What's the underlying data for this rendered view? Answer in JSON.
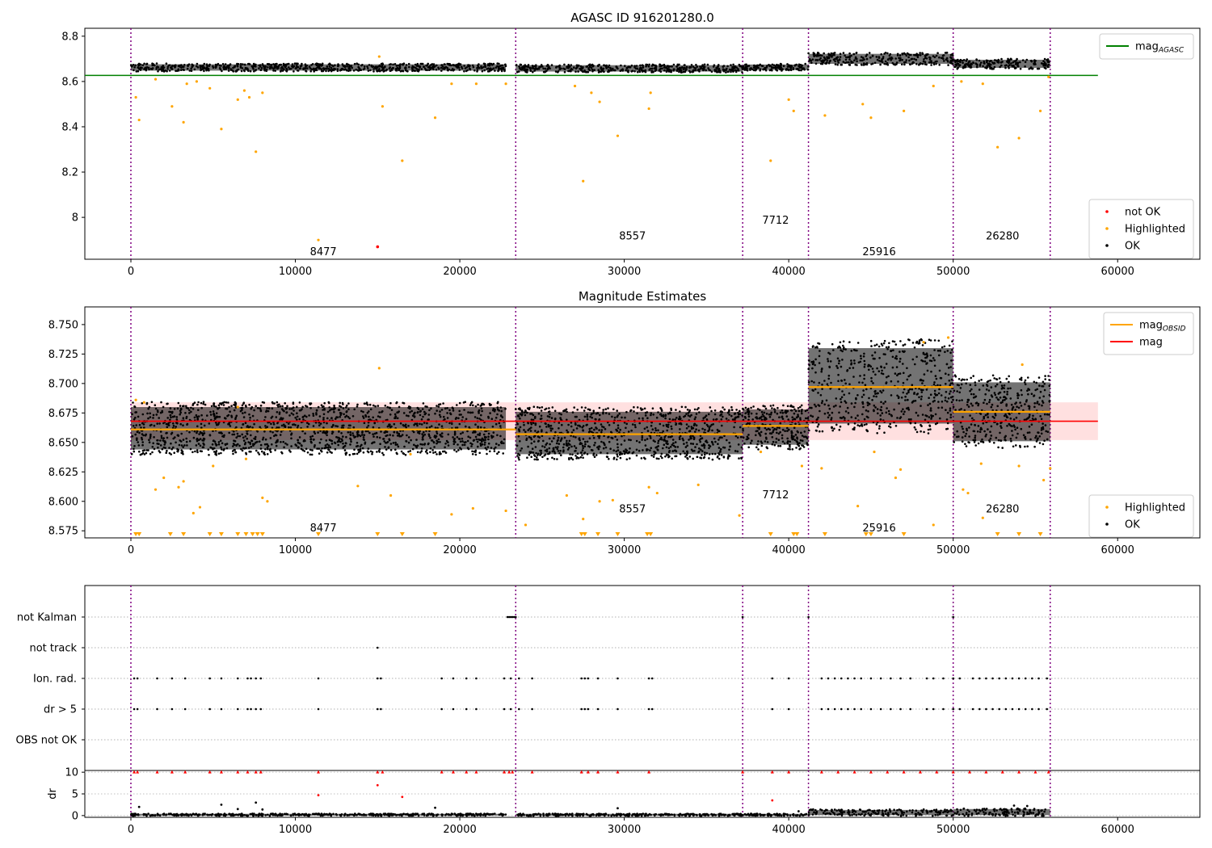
{
  "chart_data": [
    {
      "type": "scatter",
      "title": "AGASC ID 916201280.0",
      "xlim": [
        -2800,
        65000
      ],
      "ylim": [
        7.815,
        8.835
      ],
      "xticks": [
        0,
        10000,
        20000,
        30000,
        40000,
        50000,
        60000
      ],
      "yticks": [
        8.0,
        8.2,
        8.4,
        8.6,
        8.8
      ],
      "obsid_boundaries": [
        0,
        23400,
        37200,
        41200,
        50000,
        55900
      ],
      "obsids": [
        {
          "label": "8477",
          "x": 11700,
          "y": 7.85
        },
        {
          "label": "8557",
          "x": 30500,
          "y": 7.92
        },
        {
          "label": "7712",
          "x": 39200,
          "y": 7.99
        },
        {
          "label": "25916",
          "x": 45500,
          "y": 7.85
        },
        {
          "label": "26280",
          "x": 53000,
          "y": 7.92
        }
      ],
      "ok_bands": [
        {
          "x0": 0,
          "x1": 22800,
          "center": 8.662,
          "halfwidth": 0.014
        },
        {
          "x0": 23400,
          "x1": 37200,
          "center": 8.658,
          "halfwidth": 0.014
        },
        {
          "x0": 37200,
          "x1": 41200,
          "center": 8.663,
          "halfwidth": 0.012
        },
        {
          "x0": 41200,
          "x1": 50000,
          "center": 8.7,
          "halfwidth": 0.022
        },
        {
          "x0": 50000,
          "x1": 55900,
          "center": 8.678,
          "halfwidth": 0.018
        }
      ],
      "highlighted": [
        [
          300,
          8.53
        ],
        [
          500,
          8.43
        ],
        [
          1500,
          8.61
        ],
        [
          2500,
          8.49
        ],
        [
          3200,
          8.42
        ],
        [
          3400,
          8.59
        ],
        [
          4000,
          8.6
        ],
        [
          4800,
          8.57
        ],
        [
          5500,
          8.39
        ],
        [
          6500,
          8.52
        ],
        [
          6900,
          8.56
        ],
        [
          7200,
          8.53
        ],
        [
          7600,
          8.29
        ],
        [
          8000,
          8.55
        ],
        [
          15100,
          8.71
        ],
        [
          15300,
          8.49
        ],
        [
          16500,
          8.25
        ],
        [
          18500,
          8.44
        ],
        [
          19500,
          8.59
        ],
        [
          21000,
          8.59
        ],
        [
          22800,
          8.59
        ],
        [
          27000,
          8.58
        ],
        [
          27500,
          8.16
        ],
        [
          28000,
          8.55
        ],
        [
          28500,
          8.51
        ],
        [
          29600,
          8.36
        ],
        [
          31500,
          8.48
        ],
        [
          31600,
          8.55
        ],
        [
          38900,
          8.25
        ],
        [
          40000,
          8.52
        ],
        [
          40300,
          8.47
        ],
        [
          42200,
          8.45
        ],
        [
          44500,
          8.5
        ],
        [
          45000,
          8.44
        ],
        [
          47000,
          8.47
        ],
        [
          48800,
          8.58
        ],
        [
          50500,
          8.6
        ],
        [
          51800,
          8.59
        ],
        [
          52700,
          8.31
        ],
        [
          54000,
          8.35
        ],
        [
          55300,
          8.47
        ],
        [
          55800,
          8.62
        ],
        [
          11400,
          7.9
        ]
      ],
      "not_ok": [
        [
          15000,
          7.87
        ]
      ],
      "mag_agasc": 8.627,
      "mag_agasc_xmax": 58800,
      "legend_lines": [
        {
          "label": "mag",
          "sub": "AGASC",
          "color": "#008000"
        }
      ],
      "legend_points": [
        {
          "label": "not OK",
          "color": "#ff0000"
        },
        {
          "label": "Highlighted",
          "color": "#ffa500"
        },
        {
          "label": "OK",
          "color": "#000000"
        }
      ]
    },
    {
      "type": "scatter",
      "title": "Magnitude Estimates",
      "xlim": [
        -2800,
        65000
      ],
      "ylim": [
        8.569,
        8.765
      ],
      "xticks": [
        0,
        10000,
        20000,
        30000,
        40000,
        50000,
        60000
      ],
      "yticks": [
        8.575,
        8.6,
        8.625,
        8.65,
        8.675,
        8.7,
        8.725,
        8.75
      ],
      "ytick_labels": [
        "8.575",
        "8.600",
        "8.625",
        "8.650",
        "8.675",
        "8.700",
        "8.725",
        "8.750"
      ],
      "obsid_boundaries": [
        0,
        23400,
        37200,
        41200,
        50000,
        55900
      ],
      "obsids": [
        {
          "label": "8477",
          "x": 11700,
          "y": 8.578
        },
        {
          "label": "8557",
          "x": 30500,
          "y": 8.594
        },
        {
          "label": "7712",
          "x": 39200,
          "y": 8.606
        },
        {
          "label": "25916",
          "x": 45500,
          "y": 8.578
        },
        {
          "label": "26280",
          "x": 53000,
          "y": 8.594
        }
      ],
      "ok_bands": [
        {
          "x0": 0,
          "x1": 22800,
          "center": 8.662,
          "halfwidth": 0.018
        },
        {
          "x0": 23400,
          "x1": 37200,
          "center": 8.658,
          "halfwidth": 0.018
        },
        {
          "x0": 37200,
          "x1": 41200,
          "center": 8.663,
          "halfwidth": 0.015
        },
        {
          "x0": 41200,
          "x1": 50000,
          "center": 8.698,
          "halfwidth": 0.032
        },
        {
          "x0": 50000,
          "x1": 55900,
          "center": 8.676,
          "halfwidth": 0.025
        }
      ],
      "highlighted": [
        [
          300,
          8.686
        ],
        [
          800,
          8.684
        ],
        [
          1500,
          8.61
        ],
        [
          2000,
          8.62
        ],
        [
          2900,
          8.612
        ],
        [
          3200,
          8.617
        ],
        [
          3800,
          8.59
        ],
        [
          4200,
          8.595
        ],
        [
          5000,
          8.63
        ],
        [
          6500,
          8.68
        ],
        [
          7000,
          8.636
        ],
        [
          8000,
          8.603
        ],
        [
          8300,
          8.6
        ],
        [
          13800,
          8.613
        ],
        [
          15100,
          8.713
        ],
        [
          15800,
          8.605
        ],
        [
          17000,
          8.64
        ],
        [
          19500,
          8.589
        ],
        [
          20800,
          8.594
        ],
        [
          22800,
          8.592
        ],
        [
          24000,
          8.58
        ],
        [
          26500,
          8.605
        ],
        [
          27500,
          8.585
        ],
        [
          28500,
          8.6
        ],
        [
          29300,
          8.601
        ],
        [
          31500,
          8.612
        ],
        [
          32000,
          8.607
        ],
        [
          34500,
          8.614
        ],
        [
          37000,
          8.588
        ],
        [
          38300,
          8.642
        ],
        [
          40800,
          8.63
        ],
        [
          42000,
          8.628
        ],
        [
          44200,
          8.596
        ],
        [
          45200,
          8.642
        ],
        [
          46500,
          8.62
        ],
        [
          46800,
          8.627
        ],
        [
          48800,
          8.58
        ],
        [
          50600,
          8.61
        ],
        [
          50900,
          8.607
        ],
        [
          51800,
          8.586
        ],
        [
          51700,
          8.632
        ],
        [
          54000,
          8.63
        ],
        [
          55500,
          8.618
        ],
        [
          55900,
          8.628
        ],
        [
          54200,
          8.716
        ],
        [
          49700,
          8.739
        ],
        [
          48200,
          8.735
        ]
      ],
      "lower_markers": [
        300,
        500,
        2400,
        3200,
        4800,
        5500,
        6500,
        7000,
        7400,
        7700,
        8000,
        11400,
        15000,
        16500,
        18500,
        27400,
        27600,
        28400,
        29600,
        31400,
        31600,
        38900,
        40300,
        40500,
        42200,
        44700,
        45000,
        47000,
        52700,
        54000,
        55300
      ],
      "mag_obsid": [
        {
          "x0": 0,
          "x1": 23400,
          "value": 8.661
        },
        {
          "x0": 23400,
          "x1": 37200,
          "value": 8.657
        },
        {
          "x0": 37200,
          "x1": 41200,
          "value": 8.664
        },
        {
          "x0": 41200,
          "x1": 50000,
          "value": 8.697
        },
        {
          "x0": 50000,
          "x1": 55900,
          "value": 8.676
        }
      ],
      "mag": 8.668,
      "mag_std": 0.016,
      "mag_xmax": 58800,
      "legend_lines": [
        {
          "label": "mag",
          "sub": "OBSID",
          "color": "#ffa500"
        },
        {
          "label": "mag",
          "sub": "",
          "color": "#ff0000"
        }
      ],
      "legend_points": [
        {
          "label": "Highlighted",
          "color": "#ffa500"
        },
        {
          "label": "OK",
          "color": "#000000"
        }
      ]
    },
    {
      "type": "scatter",
      "xlim": [
        -2800,
        65000
      ],
      "xticks": [
        0,
        10000,
        20000,
        30000,
        40000,
        50000,
        60000
      ],
      "obsid_boundaries": [
        0,
        23400,
        37200,
        41200,
        50000,
        55900
      ],
      "flag_categories": [
        "not Kalman",
        "not track",
        "Ion. rad.",
        "dr > 5",
        "OBS not OK"
      ],
      "flags": {
        "not Kalman": [
          22900,
          23000,
          23100,
          23200,
          23300,
          23400,
          37200,
          41200,
          50000
        ],
        "not track": [
          15000
        ],
        "Ion. rad.": [
          200,
          400,
          1600,
          2500,
          3300,
          4800,
          5500,
          6500,
          7100,
          7300,
          7600,
          7900,
          11400,
          15000,
          15200,
          18900,
          19600,
          20400,
          21000,
          22700,
          23100,
          23600,
          24400,
          27400,
          27600,
          27800,
          28400,
          29600,
          31500,
          31700,
          39000,
          40000,
          42000,
          42400,
          42800,
          43200,
          43600,
          44000,
          44400,
          45000,
          45600,
          46200,
          46800,
          47400,
          48400,
          48800,
          49400,
          50000,
          50400,
          51200,
          51600,
          52000,
          52400,
          52800,
          53200,
          53600,
          54000,
          54400,
          54800,
          55200,
          55700
        ],
        "dr > 5": [
          200,
          400,
          1600,
          2500,
          3300,
          4800,
          5500,
          6500,
          7100,
          7300,
          7600,
          7900,
          11400,
          15000,
          15200,
          18900,
          19600,
          20400,
          21000,
          22700,
          23100,
          23600,
          24400,
          27400,
          27600,
          27800,
          28400,
          29600,
          31500,
          31700,
          39000,
          40000,
          42000,
          42400,
          42800,
          43200,
          43600,
          44000,
          44400,
          45000,
          45600,
          46200,
          46800,
          47400,
          48400,
          48800,
          49400,
          50000,
          50400,
          51200,
          51600,
          52000,
          52400,
          52800,
          53200,
          53600,
          54000,
          54400,
          54800,
          55200,
          55700
        ],
        "OBS not OK": []
      }
    },
    {
      "type": "scatter",
      "xlim": [
        -2800,
        65000
      ],
      "ylim": [
        -0.4,
        10.4
      ],
      "ylabel": "dr",
      "xticks": [
        0,
        10000,
        20000,
        30000,
        40000,
        50000,
        60000
      ],
      "yticks": [
        0,
        5,
        10
      ],
      "obsid_boundaries": [
        0,
        23400,
        37200,
        41200,
        50000,
        55900
      ],
      "dr_red": [
        [
          200,
          10
        ],
        [
          400,
          10
        ],
        [
          1600,
          10
        ],
        [
          2500,
          10
        ],
        [
          3300,
          10
        ],
        [
          4800,
          10
        ],
        [
          5500,
          10
        ],
        [
          6500,
          10
        ],
        [
          7100,
          10
        ],
        [
          7600,
          10
        ],
        [
          7900,
          10
        ],
        [
          11400,
          10
        ],
        [
          11400,
          4.7
        ],
        [
          15000,
          10
        ],
        [
          15000,
          7
        ],
        [
          15300,
          10
        ],
        [
          16500,
          4.3
        ],
        [
          18900,
          10
        ],
        [
          19600,
          10
        ],
        [
          20400,
          10
        ],
        [
          21000,
          10
        ],
        [
          22700,
          10
        ],
        [
          23000,
          10
        ],
        [
          23200,
          10
        ],
        [
          24400,
          10
        ],
        [
          27400,
          10
        ],
        [
          27800,
          10
        ],
        [
          28400,
          10
        ],
        [
          29600,
          10
        ],
        [
          31500,
          10
        ],
        [
          37200,
          10
        ],
        [
          39000,
          10
        ],
        [
          39000,
          3.5
        ],
        [
          40000,
          10
        ],
        [
          42000,
          10
        ],
        [
          43000,
          10
        ],
        [
          44000,
          10
        ],
        [
          45000,
          10
        ],
        [
          46000,
          10
        ],
        [
          47000,
          10
        ],
        [
          48000,
          10
        ],
        [
          49000,
          10
        ],
        [
          50000,
          10
        ],
        [
          51000,
          10
        ],
        [
          52000,
          10
        ],
        [
          53000,
          10
        ],
        [
          54000,
          10
        ],
        [
          55000,
          10
        ],
        [
          55800,
          10
        ]
      ],
      "dr_ok_bands": [
        {
          "x0": 0,
          "x1": 22800,
          "center": 0.2,
          "halfwidth": 0.2
        },
        {
          "x0": 23400,
          "x1": 37200,
          "center": 0.2,
          "halfwidth": 0.2
        },
        {
          "x0": 37200,
          "x1": 41200,
          "center": 0.2,
          "halfwidth": 0.2
        },
        {
          "x0": 41200,
          "x1": 50000,
          "center": 0.7,
          "halfwidth": 0.6
        },
        {
          "x0": 50000,
          "x1": 55900,
          "center": 0.8,
          "halfwidth": 0.7
        }
      ],
      "dr_outliers": [
        [
          500,
          2.0
        ],
        [
          5500,
          2.5
        ],
        [
          6500,
          1.5
        ],
        [
          7600,
          3.0
        ],
        [
          8000,
          1.4
        ],
        [
          18500,
          1.8
        ],
        [
          29600,
          1.7
        ],
        [
          53700,
          2.3
        ],
        [
          54500,
          2.2
        ],
        [
          40600,
          1.0
        ]
      ]
    }
  ]
}
